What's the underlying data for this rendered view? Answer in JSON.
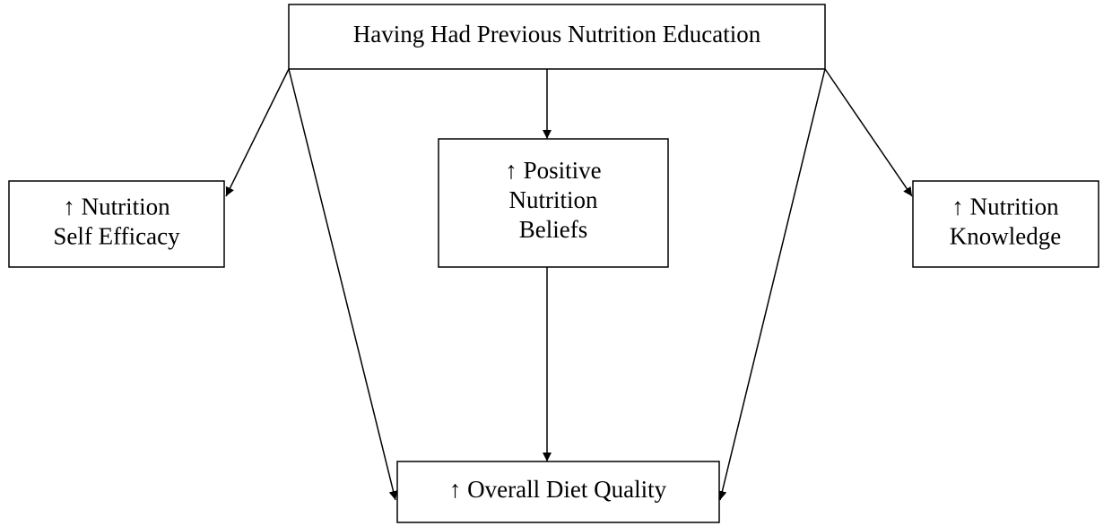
{
  "nodes": [
    {
      "lines": [
        "Having Had Previous Nutrition Education"
      ]
    },
    {
      "lines": [
        "↑ Nutrition",
        "Self Efficacy"
      ]
    },
    {
      "lines": [
        "↑ Positive",
        "Nutrition",
        "Beliefs"
      ]
    },
    {
      "lines": [
        "↑ Nutrition",
        "Knowledge"
      ]
    },
    {
      "lines": [
        "↑ Overall Diet Quality"
      ]
    }
  ]
}
